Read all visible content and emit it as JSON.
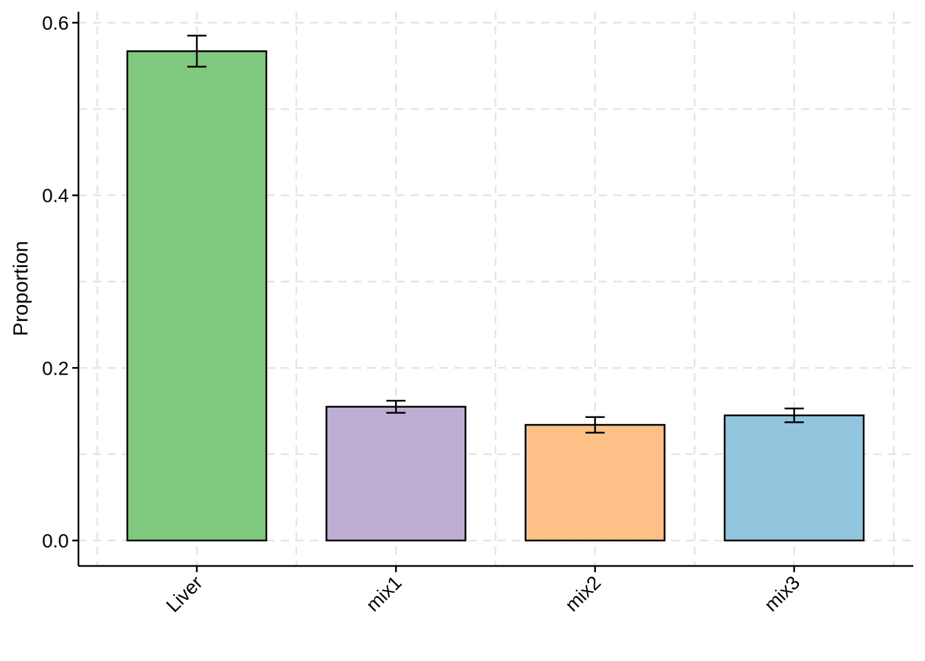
{
  "chart_data": {
    "type": "bar",
    "title": "",
    "xlabel": "",
    "ylabel": "Proportion",
    "categories": [
      "Liver",
      "mix1",
      "mix2",
      "mix3"
    ],
    "values": [
      0.567,
      0.155,
      0.134,
      0.145
    ],
    "errors": [
      [
        0.549,
        0.585
      ],
      [
        0.148,
        0.162
      ],
      [
        0.125,
        0.143
      ],
      [
        0.137,
        0.153
      ]
    ],
    "colors": [
      "#7FC97F",
      "#BEAED4",
      "#FDC086",
      "#92C5DE"
    ],
    "ylim": [
      -0.03,
      0.62
    ],
    "yticks": [
      0.0,
      0.2,
      0.4,
      0.6
    ],
    "ytick_labels": [
      "0.0",
      "0.2",
      "0.4",
      "0.6"
    ],
    "grid": true,
    "grid_style": "dashed",
    "legend": "none"
  }
}
